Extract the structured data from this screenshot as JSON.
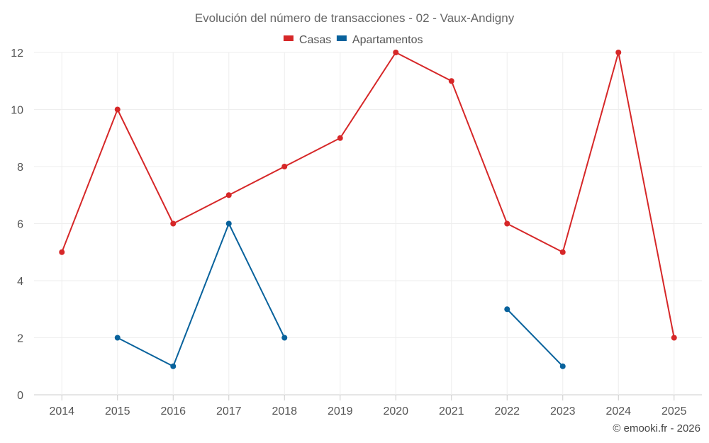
{
  "chart_data": {
    "type": "line",
    "title": "Evolución del número de transacciones - 02 - Vaux-Andigny",
    "categories": [
      "2014",
      "2015",
      "2016",
      "2017",
      "2018",
      "2019",
      "2020",
      "2021",
      "2022",
      "2023",
      "2024",
      "2025"
    ],
    "series": [
      {
        "name": "Casas",
        "color": "#d62728",
        "values": [
          5,
          10,
          6,
          7,
          8,
          9,
          12,
          11,
          6,
          5,
          12,
          2
        ]
      },
      {
        "name": "Apartamentos",
        "color": "#08629c",
        "values": [
          null,
          2,
          1,
          6,
          2,
          null,
          null,
          null,
          3,
          1,
          null,
          null
        ]
      }
    ],
    "ylim": [
      0,
      12
    ],
    "yticks": [
      0,
      2,
      4,
      6,
      8,
      10,
      12
    ],
    "xlabel": "",
    "ylabel": "",
    "legend_position": "top-center",
    "grid": true
  },
  "credit": "© emooki.fr - 2026"
}
